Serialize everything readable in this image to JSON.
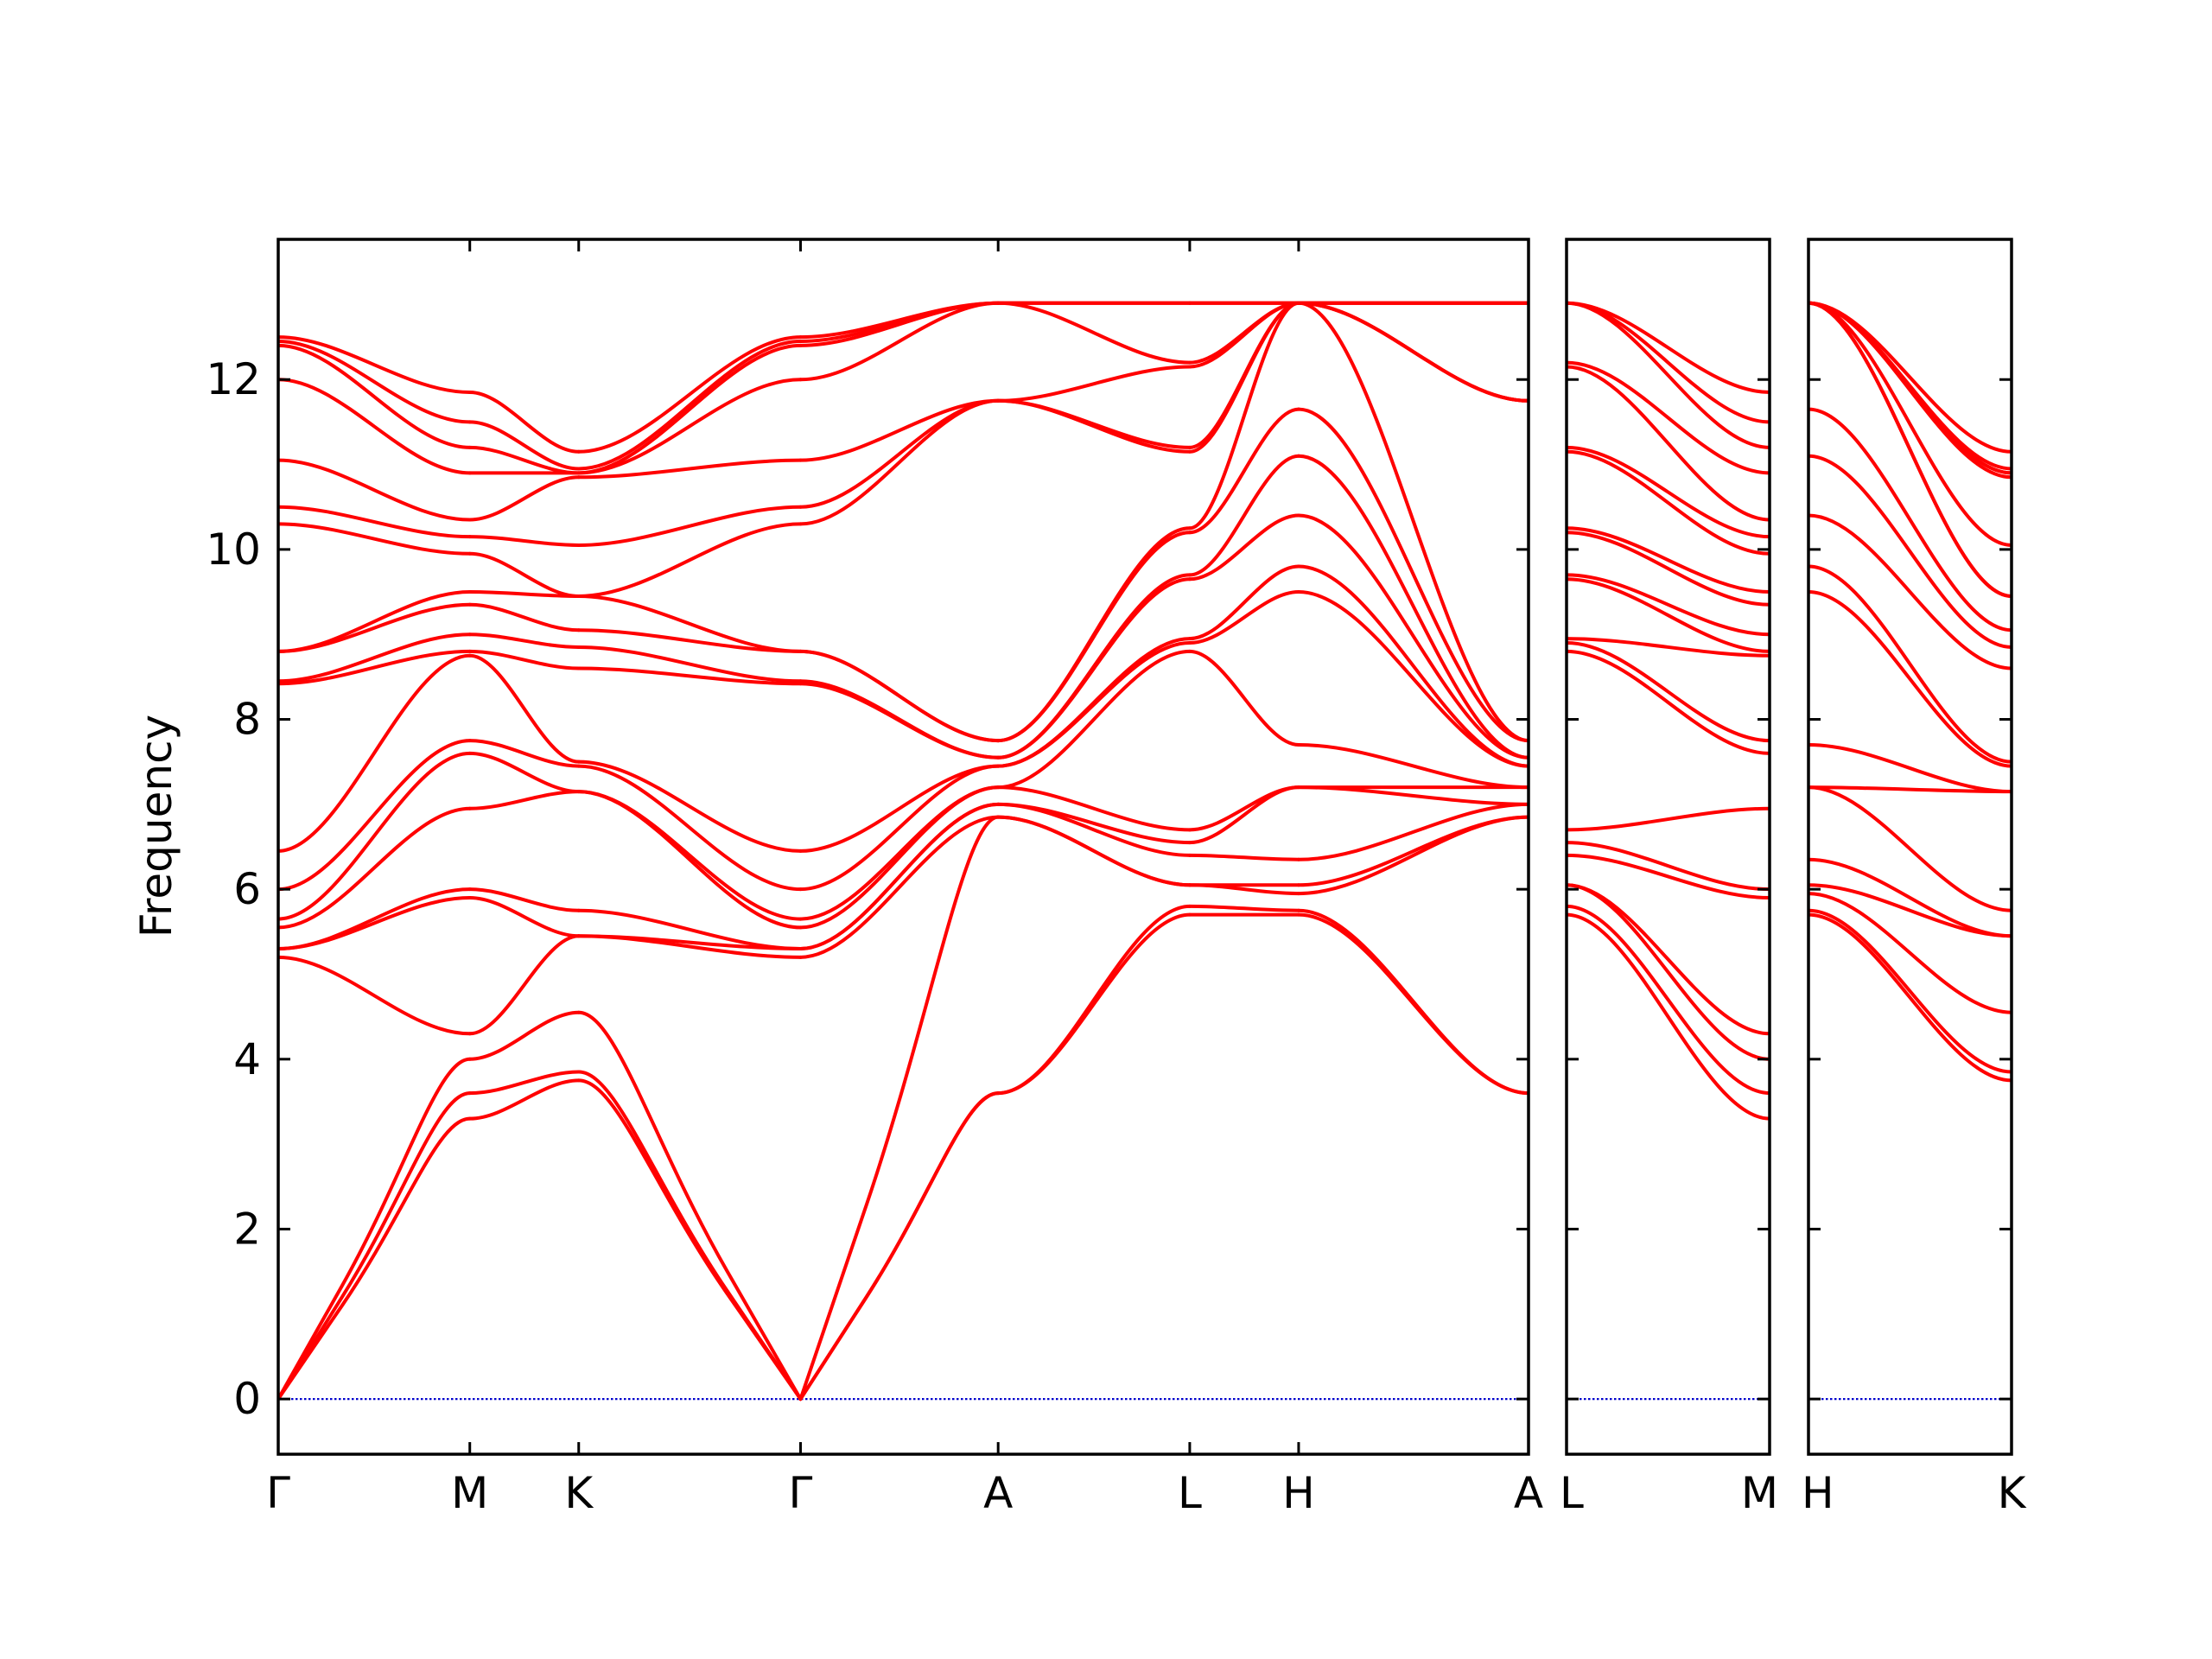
{
  "chart_data": {
    "type": "line",
    "title": "",
    "xlabel": "",
    "ylabel": "Frequency",
    "ylim": [
      -0.65,
      13.65
    ],
    "yticks": [
      0,
      2,
      4,
      6,
      8,
      10,
      12
    ],
    "grid": false,
    "legend": "none",
    "colors": {
      "bands": "#ff0000",
      "zero_line": "#0000cc",
      "axes": "#000000"
    },
    "panels": [
      {
        "name": "panel-1",
        "labels": [
          "Γ",
          "M",
          "K",
          "Γ",
          "A",
          "L",
          "H",
          "A"
        ],
        "ticks": [
          0,
          0.95,
          1.49,
          2.59,
          3.57,
          4.52,
          5.06,
          6.2
        ],
        "xmax": 6.2,
        "segments": [
          {
            "from": "Γ",
            "to": "M",
            "x0": 0,
            "x1": 0.95,
            "start": [
              0,
              0,
              0,
              5.2,
              5.3,
              5.3,
              5.55,
              5.65,
              6.0,
              6.45,
              8.42,
              8.45,
              8.8,
              8.8,
              10.3,
              10.5,
              11.05,
              12.0,
              12.4,
              12.45,
              12.5
            ],
            "end": [
              3.3,
              3.6,
              4.0,
              4.3,
              5.9,
              6.0,
              6.95,
              7.6,
              7.75,
              8.75,
              8.8,
              9.0,
              9.35,
              9.5,
              9.95,
              10.15,
              10.35,
              10.9,
              11.2,
              11.5,
              11.85
            ]
          },
          {
            "from": "M",
            "to": "K",
            "x0": 0.95,
            "x1": 1.49,
            "start": [
              3.3,
              3.6,
              4.0,
              4.3,
              5.9,
              6.0,
              6.95,
              7.6,
              7.75,
              8.75,
              8.8,
              9.0,
              9.35,
              9.5,
              9.95,
              10.15,
              10.35,
              10.9,
              11.2,
              11.5,
              11.85
            ],
            "end": [
              3.75,
              3.85,
              4.55,
              5.45,
              5.45,
              5.75,
              7.15,
              7.15,
              7.45,
              7.5,
              8.6,
              8.85,
              9.05,
              9.45,
              9.45,
              10.05,
              10.85,
              10.9,
              10.9,
              10.95,
              11.15
            ]
          },
          {
            "from": "K",
            "to": "Γ",
            "x0": 1.49,
            "x1": 2.59,
            "start": [
              3.75,
              3.85,
              4.55,
              5.45,
              5.45,
              5.75,
              7.15,
              7.15,
              7.45,
              7.5,
              8.6,
              8.85,
              9.05,
              9.45,
              9.45,
              10.05,
              10.85,
              10.9,
              10.9,
              10.95,
              11.15
            ],
            "end": [
              0,
              0,
              0,
              5.2,
              5.3,
              5.3,
              5.55,
              5.65,
              6.0,
              6.45,
              8.42,
              8.45,
              8.8,
              8.8,
              10.3,
              10.5,
              11.05,
              12.0,
              12.4,
              12.45,
              12.5
            ]
          },
          {
            "from": "Γ",
            "to": "A",
            "x0": 2.59,
            "x1": 3.57,
            "start": [
              0,
              0,
              0,
              5.2,
              5.3,
              5.3,
              5.55,
              5.65,
              6.0,
              6.45,
              8.42,
              8.45,
              8.8,
              8.8,
              10.3,
              10.5,
              11.05,
              12.0,
              12.4,
              12.45,
              12.5
            ],
            "end": [
              3.6,
              3.6,
              6.85,
              6.85,
              7.0,
              7.0,
              7.2,
              7.2,
              7.45,
              7.45,
              7.55,
              7.55,
              7.75,
              7.75,
              11.75,
              11.75,
              11.75,
              12.9,
              12.9,
              12.9,
              12.9
            ]
          },
          {
            "from": "A",
            "to": "L",
            "x0": 3.57,
            "x1": 4.52,
            "start": [
              3.6,
              3.6,
              6.85,
              6.85,
              7.0,
              7.0,
              7.2,
              7.2,
              7.45,
              7.45,
              7.55,
              7.55,
              7.75,
              7.75,
              11.75,
              11.75,
              11.75,
              12.9,
              12.9,
              12.9,
              12.9
            ],
            "end": [
              5.7,
              5.8,
              6.05,
              6.05,
              6.4,
              6.55,
              6.7,
              8.8,
              8.9,
              8.95,
              9.65,
              9.7,
              10.2,
              10.25,
              11.15,
              11.2,
              12.15,
              12.2,
              12.9,
              12.9,
              12.9
            ]
          },
          {
            "from": "L",
            "to": "H",
            "x0": 4.52,
            "x1": 5.06,
            "start": [
              5.7,
              5.8,
              6.05,
              6.05,
              6.4,
              6.55,
              6.7,
              8.8,
              8.9,
              8.95,
              9.65,
              9.7,
              10.2,
              10.25,
              11.15,
              11.2,
              12.15,
              12.2,
              12.9,
              12.9,
              12.9
            ],
            "end": [
              5.7,
              5.75,
              5.95,
              6.05,
              6.35,
              7.2,
              7.2,
              7.7,
              9.5,
              9.8,
              10.4,
              11.1,
              11.65,
              12.9,
              12.9,
              12.9,
              12.9,
              12.9,
              12.9,
              12.9,
              12.9
            ]
          },
          {
            "from": "H",
            "to": "A",
            "x0": 5.06,
            "x1": 6.2,
            "start": [
              5.7,
              5.75,
              5.95,
              6.05,
              6.35,
              7.2,
              7.2,
              7.7,
              9.5,
              9.8,
              10.4,
              11.1,
              11.65,
              12.9,
              12.9,
              12.9,
              12.9,
              12.9,
              12.9,
              12.9,
              12.9
            ],
            "end": [
              3.6,
              3.6,
              6.85,
              6.85,
              7.0,
              7.0,
              7.2,
              7.2,
              7.45,
              7.45,
              7.55,
              7.55,
              7.75,
              7.75,
              11.75,
              11.75,
              11.75,
              12.9,
              12.9,
              12.9,
              12.9
            ]
          }
        ]
      },
      {
        "name": "panel-2",
        "labels": [
          "L",
          "M"
        ],
        "ticks": [
          0,
          1
        ],
        "xmax": 1,
        "segments": [
          {
            "from": "L",
            "to": "M",
            "x0": 0,
            "x1": 1,
            "start": [
              5.7,
              5.8,
              6.05,
              6.05,
              6.4,
              6.55,
              6.7,
              8.8,
              8.9,
              8.95,
              9.65,
              9.7,
              10.2,
              10.25,
              11.15,
              11.2,
              12.15,
              12.2,
              12.9,
              12.9,
              12.9
            ],
            "end": [
              3.3,
              3.6,
              4.0,
              4.3,
              5.9,
              6.0,
              6.95,
              7.6,
              7.75,
              8.75,
              8.8,
              9.0,
              9.35,
              9.5,
              9.95,
              10.15,
              10.35,
              10.9,
              11.2,
              11.5,
              11.85
            ]
          }
        ]
      },
      {
        "name": "panel-3",
        "labels": [
          "H",
          "K"
        ],
        "ticks": [
          0,
          1
        ],
        "xmax": 1,
        "segments": [
          {
            "from": "H",
            "to": "K",
            "x0": 0,
            "x1": 1,
            "start": [
              5.7,
              5.75,
              5.95,
              6.05,
              6.35,
              7.2,
              7.2,
              7.7,
              9.5,
              9.8,
              10.4,
              11.1,
              11.65,
              12.9,
              12.9,
              12.9,
              12.9,
              12.9,
              12.9,
              12.9,
              12.9
            ],
            "end": [
              3.75,
              3.85,
              4.55,
              5.45,
              5.45,
              5.75,
              7.15,
              7.15,
              7.45,
              7.5,
              8.6,
              8.85,
              9.05,
              9.45,
              9.45,
              10.05,
              10.85,
              10.9,
              10.9,
              10.95,
              11.15
            ]
          }
        ]
      }
    ]
  }
}
